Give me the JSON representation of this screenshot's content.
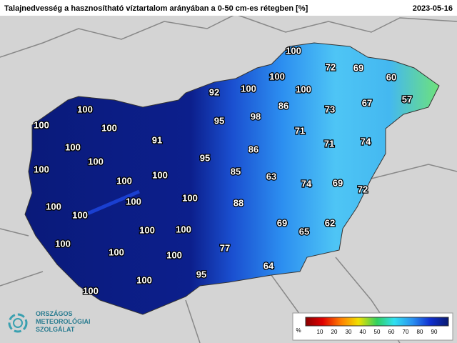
{
  "header": {
    "title": "Talajnedvesség a hasznosítható víztartalom arányában a 0-50 cm-es rétegben [%]",
    "date": "2023-05-16"
  },
  "stations": [
    100,
    72,
    69,
    60,
    100,
    100,
    92,
    100,
    57,
    86,
    73,
    67,
    100,
    95,
    98,
    100,
    100,
    71,
    91,
    71,
    74,
    100,
    86,
    95,
    100,
    100,
    85,
    63,
    100,
    100,
    74,
    69,
    72,
    100,
    100,
    88,
    100,
    100,
    69,
    62,
    100,
    100,
    65,
    100,
    77,
    100,
    100,
    64,
    95,
    100,
    100
  ],
  "legend": {
    "unit": "%",
    "ticks": [
      10,
      20,
      30,
      40,
      50,
      60,
      70,
      80,
      90
    ]
  },
  "logo": {
    "line1": "ORSZÁGOS",
    "line2": "METEOROLÓGIAI",
    "line3": "SZOLGÁLAT"
  }
}
